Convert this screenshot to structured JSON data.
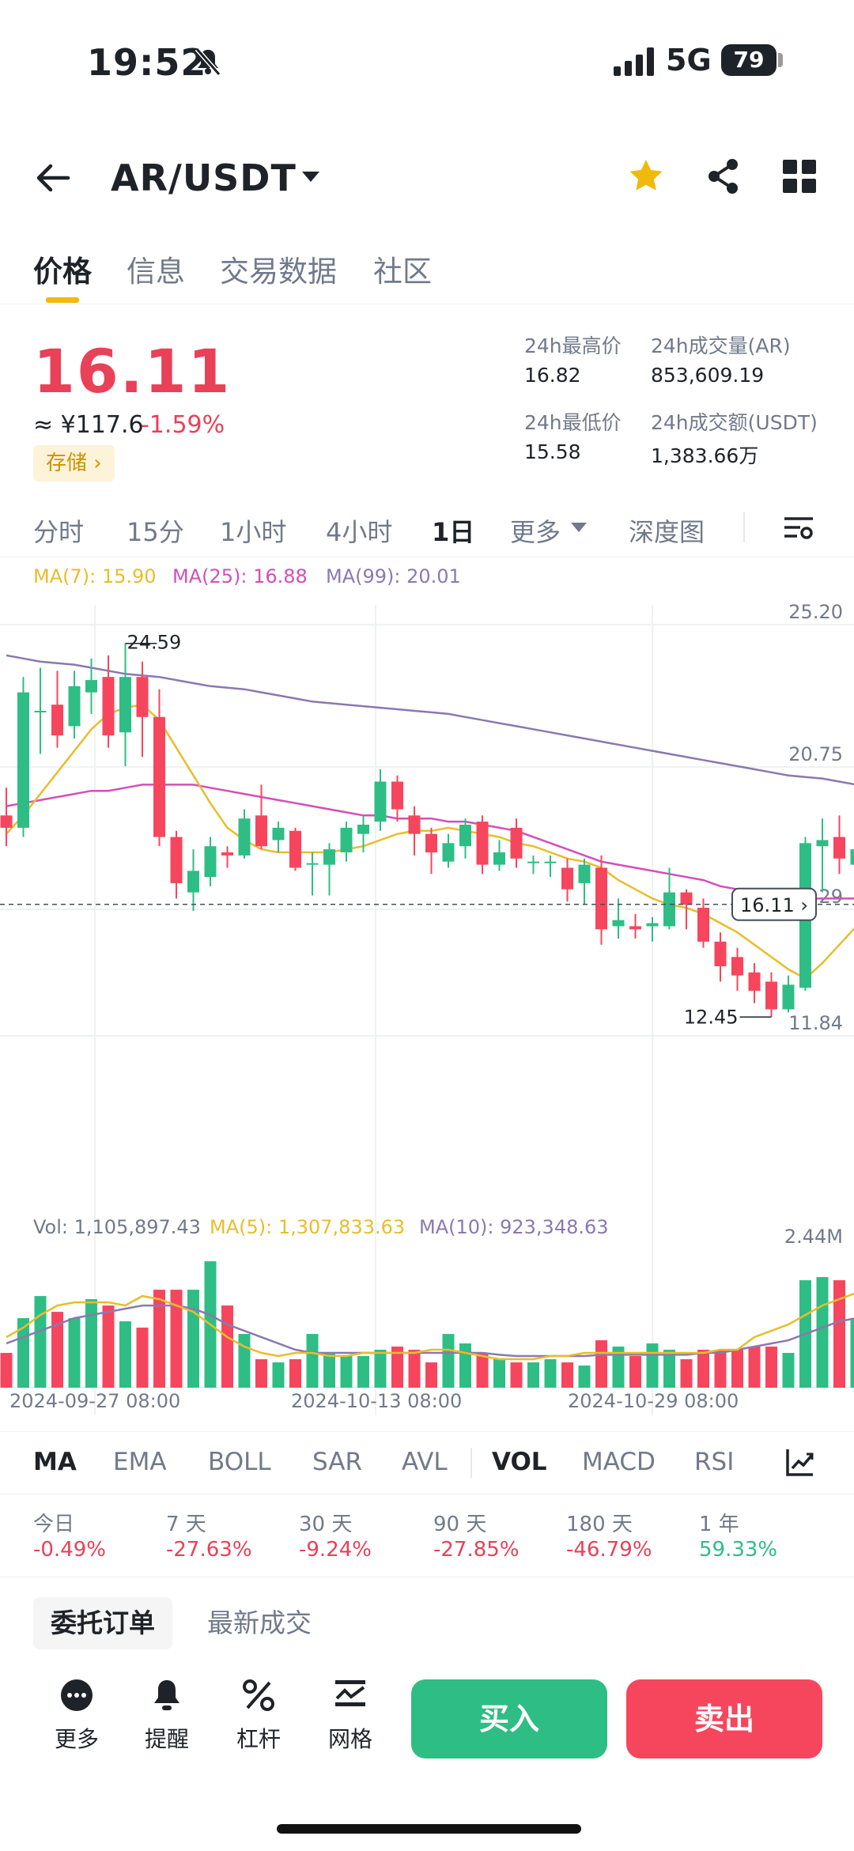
{
  "status": {
    "time": "19:52",
    "network": "5G",
    "battery": "79"
  },
  "nav": {
    "pair": "AR/USDT",
    "icons": [
      "back-arrow-icon",
      "star-icon",
      "share-icon",
      "grid-icon"
    ],
    "star_color": "#f0b90b"
  },
  "tabs": [
    {
      "label": "价格"
    },
    {
      "label": "信息"
    },
    {
      "label": "交易数据"
    },
    {
      "label": "社区"
    }
  ],
  "price": {
    "last": "16.11",
    "cny": "≈ ¥117.6",
    "change": "-1.59%",
    "tag": "存储 ›",
    "stats": {
      "high_label": "24h最高价",
      "high": "16.82",
      "vol_label": "24h成交量(AR)",
      "vol": "853,609.19",
      "low_label": "24h最低价",
      "low": "15.58",
      "amt_label": "24h成交额(USDT)",
      "amt": "1,383.66万"
    }
  },
  "intervals": [
    "分时",
    "15分",
    "1小时",
    "4小时",
    "1日",
    "更多",
    "深度图"
  ],
  "ma_legend": {
    "ma7": "MA(7): 15.90",
    "ma25": "MA(25): 16.88",
    "ma99": "MA(99): 20.01"
  },
  "vol_legend": {
    "vol": "Vol: 1,105,897.43",
    "ma5": "MA(5): 1,307,833.63",
    "ma10": "MA(10): 923,348.63"
  },
  "colors": {
    "up": "#2ebd85",
    "down": "#f6465d",
    "ma7": "#e9bd2a",
    "ma25": "#d34fb8",
    "ma99": "#8a79b0"
  },
  "chart_data": {
    "type": "candlestick",
    "price_axis": [
      "25.20",
      "20.75",
      "16.29",
      "11.84"
    ],
    "last_price_tag": "16.11",
    "max_label": "24.59",
    "min_label": "12.45",
    "x_labels": [
      "2024-09-27 08:00",
      "2024-10-13 08:00",
      "2024-10-29 08:00"
    ],
    "vol_axis": "2.44M",
    "candles": [
      {
        "o": 19.0,
        "c": 18.6,
        "h": 19.9,
        "l": 18.0
      },
      {
        "o": 18.6,
        "c": 23.0,
        "h": 23.5,
        "l": 18.3
      },
      {
        "o": 22.4,
        "c": 22.4,
        "h": 23.8,
        "l": 21.0
      },
      {
        "o": 22.6,
        "c": 21.6,
        "h": 23.7,
        "l": 21.2
      },
      {
        "o": 21.9,
        "c": 23.2,
        "h": 23.7,
        "l": 21.5
      },
      {
        "o": 23.0,
        "c": 23.4,
        "h": 24.1,
        "l": 22.3
      },
      {
        "o": 23.5,
        "c": 21.6,
        "h": 24.2,
        "l": 21.2
      },
      {
        "o": 21.7,
        "c": 23.5,
        "h": 24.59,
        "l": 20.6
      },
      {
        "o": 23.5,
        "c": 22.2,
        "h": 24.0,
        "l": 20.9
      },
      {
        "o": 22.2,
        "c": 18.3,
        "h": 23.1,
        "l": 18.0
      },
      {
        "o": 18.3,
        "c": 16.8,
        "h": 18.5,
        "l": 16.3
      },
      {
        "o": 16.5,
        "c": 17.2,
        "h": 17.9,
        "l": 15.9
      },
      {
        "o": 17.0,
        "c": 18.0,
        "h": 18.3,
        "l": 16.7
      },
      {
        "o": 17.8,
        "c": 17.7,
        "h": 18.0,
        "l": 17.3
      },
      {
        "o": 17.7,
        "c": 18.9,
        "h": 19.2,
        "l": 17.6
      },
      {
        "o": 19.0,
        "c": 18.0,
        "h": 20.0,
        "l": 17.9
      },
      {
        "o": 18.2,
        "c": 18.6,
        "h": 18.8,
        "l": 17.8
      },
      {
        "o": 18.5,
        "c": 17.3,
        "h": 18.6,
        "l": 17.2
      },
      {
        "o": 17.4,
        "c": 17.45,
        "h": 17.8,
        "l": 16.4
      },
      {
        "o": 17.4,
        "c": 17.9,
        "h": 18.1,
        "l": 16.4
      },
      {
        "o": 17.8,
        "c": 18.6,
        "h": 18.8,
        "l": 17.5
      },
      {
        "o": 18.4,
        "c": 18.7,
        "h": 19.0,
        "l": 17.8
      },
      {
        "o": 18.8,
        "c": 20.1,
        "h": 20.5,
        "l": 18.5
      },
      {
        "o": 20.1,
        "c": 19.2,
        "h": 20.3,
        "l": 18.8
      },
      {
        "o": 19.0,
        "c": 18.4,
        "h": 19.3,
        "l": 17.7
      },
      {
        "o": 18.4,
        "c": 17.8,
        "h": 18.6,
        "l": 17.1
      },
      {
        "o": 17.5,
        "c": 18.1,
        "h": 18.4,
        "l": 17.3
      },
      {
        "o": 18.0,
        "c": 18.7,
        "h": 18.9,
        "l": 17.6
      },
      {
        "o": 18.8,
        "c": 17.4,
        "h": 19.0,
        "l": 17.1
      },
      {
        "o": 17.4,
        "c": 17.8,
        "h": 18.2,
        "l": 17.2
      },
      {
        "o": 18.6,
        "c": 17.6,
        "h": 18.9,
        "l": 17.3
      },
      {
        "o": 17.5,
        "c": 17.5,
        "h": 17.7,
        "l": 17.1
      },
      {
        "o": 17.5,
        "c": 17.5,
        "h": 17.7,
        "l": 17.0
      },
      {
        "o": 17.3,
        "c": 16.6,
        "h": 17.6,
        "l": 16.2
      },
      {
        "o": 16.8,
        "c": 17.4,
        "h": 17.6,
        "l": 16.1
      },
      {
        "o": 17.3,
        "c": 15.3,
        "h": 17.7,
        "l": 14.8
      },
      {
        "o": 15.4,
        "c": 15.6,
        "h": 16.3,
        "l": 15.0
      },
      {
        "o": 15.4,
        "c": 15.3,
        "h": 15.8,
        "l": 15.0
      },
      {
        "o": 15.4,
        "c": 15.5,
        "h": 15.7,
        "l": 14.9
      },
      {
        "o": 15.4,
        "c": 16.5,
        "h": 17.3,
        "l": 15.3
      },
      {
        "o": 16.5,
        "c": 16.1,
        "h": 16.6,
        "l": 15.3
      },
      {
        "o": 16.0,
        "c": 14.9,
        "h": 16.3,
        "l": 14.7
      },
      {
        "o": 14.9,
        "c": 14.1,
        "h": 15.2,
        "l": 13.6
      },
      {
        "o": 14.4,
        "c": 13.8,
        "h": 14.7,
        "l": 13.3
      },
      {
        "o": 13.9,
        "c": 13.3,
        "h": 14.2,
        "l": 12.9
      },
      {
        "o": 13.6,
        "c": 12.7,
        "h": 13.9,
        "l": 12.45
      },
      {
        "o": 12.7,
        "c": 13.5,
        "h": 13.8,
        "l": 12.6
      },
      {
        "o": 13.4,
        "c": 18.1,
        "h": 18.3,
        "l": 13.3
      },
      {
        "o": 18.0,
        "c": 18.2,
        "h": 18.9,
        "l": 16.5
      },
      {
        "o": 18.3,
        "c": 17.6,
        "h": 19.0,
        "l": 17.1
      },
      {
        "o": 17.4,
        "c": 17.9,
        "h": 19.0,
        "l": 16.3
      }
    ],
    "ma7": [
      18.4,
      19.0,
      19.7,
      20.4,
      21.1,
      21.8,
      22.3,
      22.5,
      22.6,
      22.1,
      21.2,
      20.3,
      19.4,
      18.6,
      18.2,
      17.9,
      17.8,
      17.8,
      17.8,
      17.8,
      17.9,
      18.0,
      18.2,
      18.4,
      18.5,
      18.5,
      18.6,
      18.5,
      18.4,
      18.3,
      18.1,
      18.0,
      17.8,
      17.6,
      17.5,
      17.3,
      16.9,
      16.6,
      16.3,
      16.1,
      16.0,
      15.8,
      15.5,
      15.2,
      14.8,
      14.4,
      14.0,
      13.7,
      14.2,
      14.8,
      15.4
    ],
    "ma25": [
      19.3,
      19.4,
      19.5,
      19.6,
      19.7,
      19.8,
      19.8,
      19.9,
      20.0,
      20.0,
      20.0,
      20.0,
      19.9,
      19.8,
      19.7,
      19.6,
      19.5,
      19.4,
      19.3,
      19.2,
      19.1,
      19.0,
      19.0,
      18.9,
      18.9,
      18.9,
      18.8,
      18.8,
      18.7,
      18.6,
      18.5,
      18.3,
      18.1,
      17.9,
      17.7,
      17.5,
      17.4,
      17.3,
      17.2,
      17.1,
      17.0,
      16.9,
      16.7,
      16.6,
      16.5,
      16.4,
      16.3,
      16.3,
      16.3,
      16.3,
      16.3
    ],
    "ma99": [
      24.2,
      24.1,
      24.0,
      23.95,
      23.9,
      23.8,
      23.7,
      23.6,
      23.55,
      23.5,
      23.4,
      23.3,
      23.2,
      23.15,
      23.1,
      23.0,
      22.9,
      22.8,
      22.7,
      22.65,
      22.6,
      22.55,
      22.5,
      22.45,
      22.4,
      22.35,
      22.3,
      22.2,
      22.1,
      22.0,
      21.9,
      21.8,
      21.7,
      21.6,
      21.5,
      21.4,
      21.3,
      21.2,
      21.1,
      21.0,
      20.9,
      20.8,
      20.7,
      20.6,
      20.5,
      20.4,
      20.3,
      20.25,
      20.2,
      20.1,
      20.0
    ],
    "volume": [
      0.55,
      1.1,
      1.45,
      1.2,
      1.1,
      1.4,
      1.3,
      1.05,
      0.95,
      1.55,
      1.55,
      1.55,
      2.0,
      1.3,
      0.85,
      0.45,
      0.4,
      0.45,
      0.85,
      0.55,
      0.5,
      0.5,
      0.6,
      0.65,
      0.6,
      0.4,
      0.85,
      0.7,
      0.55,
      0.45,
      0.4,
      0.4,
      0.45,
      0.4,
      0.35,
      0.75,
      0.65,
      0.5,
      0.7,
      0.6,
      0.45,
      0.6,
      0.6,
      0.6,
      0.65,
      0.65,
      0.55,
      1.7,
      1.75,
      1.7,
      1.1
    ],
    "vol_ma5": [
      0.8,
      0.95,
      1.15,
      1.3,
      1.35,
      1.35,
      1.35,
      1.3,
      1.45,
      1.4,
      1.3,
      1.2,
      1.0,
      0.8,
      0.65,
      0.55,
      0.5,
      0.55,
      0.55,
      0.5,
      0.5,
      0.55,
      0.55,
      0.55,
      0.55,
      0.6,
      0.6,
      0.55,
      0.5,
      0.45,
      0.45,
      0.45,
      0.5,
      0.5,
      0.55,
      0.55,
      0.55,
      0.55,
      0.55,
      0.55,
      0.55,
      0.55,
      0.6,
      0.6,
      0.8,
      0.9,
      1.0,
      1.15,
      1.3,
      1.4,
      1.5
    ],
    "vol_ma10": [
      0.7,
      0.8,
      0.9,
      1.0,
      1.1,
      1.15,
      1.2,
      1.25,
      1.3,
      1.3,
      1.3,
      1.25,
      1.15,
      1.0,
      0.9,
      0.8,
      0.7,
      0.6,
      0.55,
      0.55,
      0.55,
      0.55,
      0.55,
      0.55,
      0.55,
      0.55,
      0.55,
      0.55,
      0.55,
      0.52,
      0.5,
      0.5,
      0.5,
      0.5,
      0.5,
      0.52,
      0.52,
      0.52,
      0.52,
      0.52,
      0.52,
      0.55,
      0.55,
      0.6,
      0.65,
      0.7,
      0.75,
      0.85,
      0.95,
      1.05,
      1.1
    ]
  },
  "indicator_tabs": [
    "MA",
    "EMA",
    "BOLL",
    "SAR",
    "AVL",
    "VOL",
    "MACD",
    "RSI"
  ],
  "performance": [
    {
      "label": "今日",
      "value": "-0.49%"
    },
    {
      "label": "7 天",
      "value": "-27.63%"
    },
    {
      "label": "30 天",
      "value": "-9.24%"
    },
    {
      "label": "90 天",
      "value": "-27.85%"
    },
    {
      "label": "180 天",
      "value": "-46.79%"
    },
    {
      "label": "1 年",
      "value": "59.33%"
    }
  ],
  "order_tabs": [
    "委托订单",
    "最新成交"
  ],
  "bottom": {
    "more": "更多",
    "alert": "提醒",
    "leverage": "杠杆",
    "grid": "网格",
    "buy": "买入",
    "sell": "卖出"
  }
}
